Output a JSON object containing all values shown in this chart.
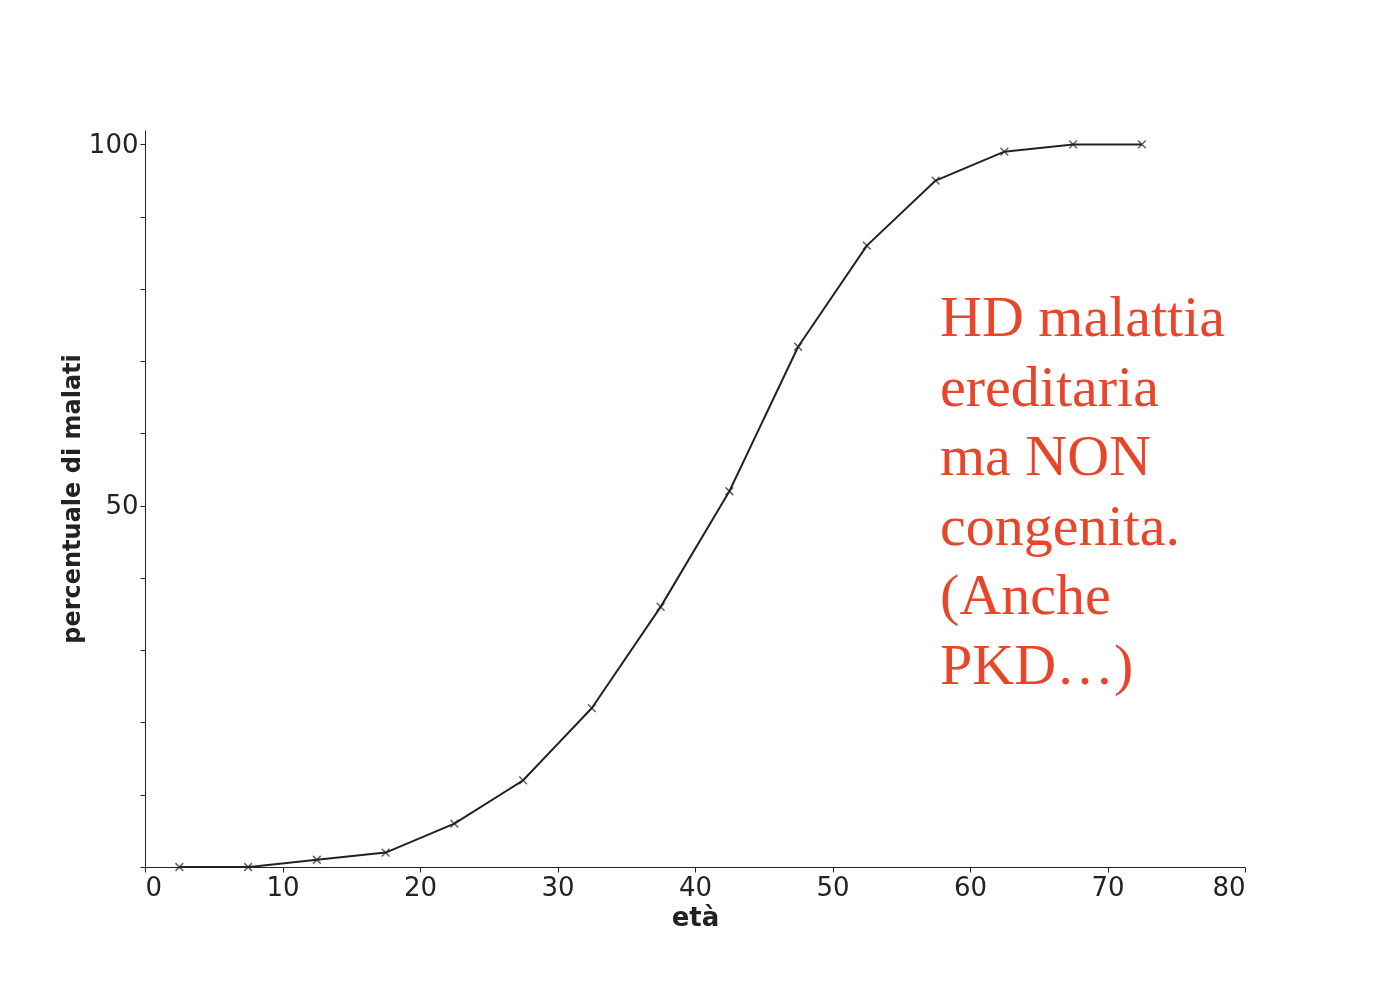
{
  "chart_data": {
    "type": "line",
    "xlabel": "età",
    "ylabel": "percentuale di malati",
    "x": [
      2.5,
      7.5,
      12.5,
      17.5,
      22.5,
      27.5,
      32.5,
      37.5,
      42.5,
      47.5,
      52.5,
      57.5,
      62.5,
      67.5,
      72.5
    ],
    "values": [
      0,
      0,
      1,
      2,
      6,
      12,
      22,
      36,
      52,
      72,
      86,
      95,
      99,
      100,
      100
    ],
    "color": "#222222",
    "marker": "cross",
    "line_style": "solid",
    "grid": false,
    "xlim": [
      0,
      80
    ],
    "xticks": [
      0,
      10,
      20,
      30,
      40,
      50,
      60,
      70,
      80
    ],
    "ylim": [
      0,
      102
    ],
    "yticks": [
      {
        "value": 0,
        "label": null
      },
      {
        "value": 10,
        "label": null
      },
      {
        "value": 20,
        "label": null
      },
      {
        "value": 30,
        "label": null
      },
      {
        "value": 40,
        "label": null
      },
      50,
      {
        "value": 60,
        "label": null
      },
      {
        "value": 70,
        "label": null
      },
      {
        "value": 80,
        "label": null
      },
      {
        "value": 90,
        "label": null
      },
      100
    ],
    "annotations": [
      "HD malattia\nereditaria\nma NON\ncongenita.\n(Anche\nPKD…)"
    ]
  }
}
